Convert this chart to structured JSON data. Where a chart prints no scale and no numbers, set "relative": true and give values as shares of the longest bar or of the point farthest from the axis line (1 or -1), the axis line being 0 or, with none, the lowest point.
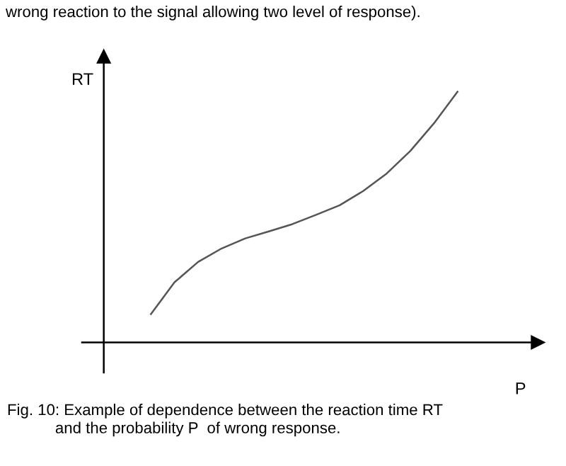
{
  "chart_data": {
    "type": "line",
    "relative": true,
    "xlabel": "P",
    "ylabel": "RT",
    "categories": [
      null,
      null,
      null,
      null,
      null,
      null,
      null,
      null,
      null,
      null,
      null,
      null,
      null,
      null
    ],
    "series": [
      {
        "color": "#555555",
        "values": [
          0.113,
          0.24,
          0.321,
          0.375,
          0.415,
          0.443,
          0.472,
          0.509,
          0.547,
          0.604,
          0.674,
          0.764,
          0.874,
          1
        ]
      }
    ],
    "annotations": [
      "wrong reaction to the signal allowing two level of response).",
      "Fig. 10: Example of dependence between the reaction time RT\n           and the probability P  of wrong response."
    ],
    "legend": false,
    "grid": false,
    "marker": "none",
    "line_style": "solid"
  }
}
